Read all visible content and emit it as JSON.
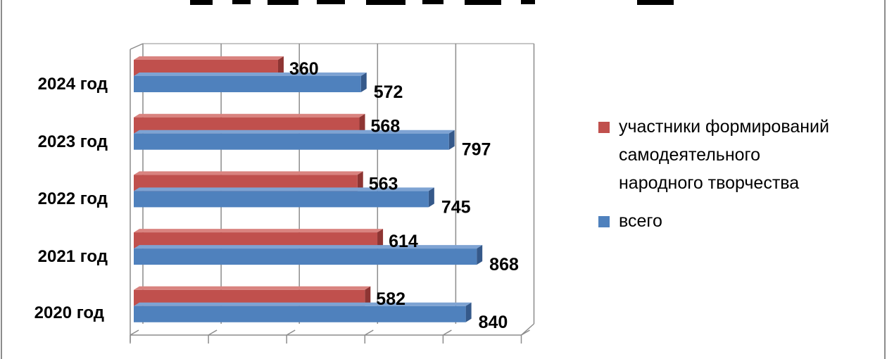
{
  "chart_data": {
    "type": "bar",
    "orientation": "horizontal",
    "title": "",
    "categories": [
      "2024 год",
      "2023 год",
      "2022 год",
      "2021 год",
      "2020 год"
    ],
    "series": [
      {
        "name": "участники формирований самодеятельного народного творчества",
        "values": [
          360,
          568,
          563,
          614,
          582
        ],
        "color": "#c0504d"
      },
      {
        "name": "всего",
        "values": [
          572,
          797,
          745,
          868,
          840
        ],
        "color": "#4f81bd"
      }
    ],
    "legend_lines": [
      [
        "участники формирований",
        "самодеятельного",
        "народного творчества"
      ],
      [
        "всего"
      ]
    ],
    "xlim": [
      0,
      1000
    ],
    "grid": true,
    "legend_position": "right"
  }
}
